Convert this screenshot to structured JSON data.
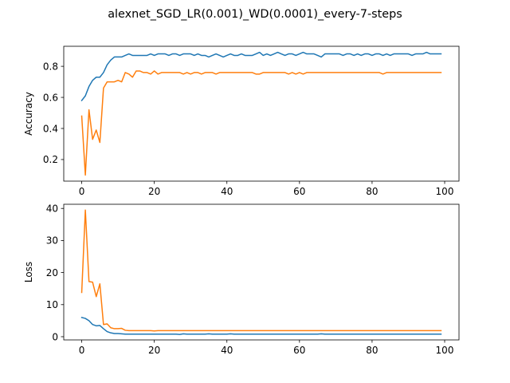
{
  "title": "alexnet_SGD_LR(0.001)_WD(0.0001)_every-7-steps",
  "chart_data": [
    {
      "type": "line",
      "ylabel": "Accuracy",
      "xlabel": "",
      "xlim": [
        -4.95,
        103.95
      ],
      "ylim": [
        0.061,
        0.929
      ],
      "xticks": [
        0,
        20,
        40,
        60,
        80,
        100
      ],
      "yticks": [
        0.2,
        0.4,
        0.6,
        0.8
      ],
      "ytick_labels": [
        "0.2",
        "0.4",
        "0.6",
        "0.8"
      ],
      "grid": false,
      "series": [
        {
          "color": "#1f77b4",
          "x": [
            0,
            1,
            2,
            3,
            4,
            5,
            6,
            7,
            8,
            9,
            10,
            11,
            12,
            13,
            14,
            15,
            16,
            17,
            18,
            19,
            20,
            21,
            22,
            23,
            24,
            25,
            26,
            27,
            28,
            29,
            30,
            31,
            32,
            33,
            34,
            35,
            36,
            37,
            38,
            39,
            40,
            41,
            42,
            43,
            44,
            45,
            46,
            47,
            48,
            49,
            50,
            51,
            52,
            53,
            54,
            55,
            56,
            57,
            58,
            59,
            60,
            61,
            62,
            63,
            64,
            65,
            66,
            67,
            68,
            69,
            70,
            71,
            72,
            73,
            74,
            75,
            76,
            77,
            78,
            79,
            80,
            81,
            82,
            83,
            84,
            85,
            86,
            87,
            88,
            89,
            90,
            91,
            92,
            93,
            94,
            95,
            96,
            97,
            98,
            99
          ],
          "values": [
            0.58,
            0.61,
            0.67,
            0.71,
            0.73,
            0.73,
            0.76,
            0.81,
            0.84,
            0.86,
            0.86,
            0.86,
            0.87,
            0.88,
            0.87,
            0.87,
            0.87,
            0.87,
            0.87,
            0.88,
            0.87,
            0.88,
            0.88,
            0.88,
            0.87,
            0.88,
            0.88,
            0.87,
            0.88,
            0.88,
            0.88,
            0.87,
            0.88,
            0.87,
            0.87,
            0.86,
            0.87,
            0.88,
            0.87,
            0.86,
            0.87,
            0.88,
            0.87,
            0.87,
            0.88,
            0.87,
            0.87,
            0.87,
            0.88,
            0.89,
            0.87,
            0.88,
            0.87,
            0.88,
            0.89,
            0.88,
            0.87,
            0.88,
            0.88,
            0.87,
            0.88,
            0.89,
            0.88,
            0.88,
            0.88,
            0.87,
            0.86,
            0.88,
            0.88,
            0.88,
            0.88,
            0.88,
            0.87,
            0.88,
            0.88,
            0.87,
            0.88,
            0.87,
            0.88,
            0.88,
            0.87,
            0.88,
            0.88,
            0.87,
            0.88,
            0.87,
            0.88,
            0.88,
            0.88,
            0.88,
            0.88,
            0.87,
            0.88,
            0.88,
            0.88,
            0.89,
            0.88,
            0.88,
            0.88,
            0.88
          ]
        },
        {
          "color": "#ff7f0e",
          "x": [
            0,
            1,
            2,
            3,
            4,
            5,
            6,
            7,
            8,
            9,
            10,
            11,
            12,
            13,
            14,
            15,
            16,
            17,
            18,
            19,
            20,
            21,
            22,
            23,
            24,
            25,
            26,
            27,
            28,
            29,
            30,
            31,
            32,
            33,
            34,
            35,
            36,
            37,
            38,
            39,
            40,
            41,
            42,
            43,
            44,
            45,
            46,
            47,
            48,
            49,
            50,
            51,
            52,
            53,
            54,
            55,
            56,
            57,
            58,
            59,
            60,
            61,
            62,
            63,
            64,
            65,
            66,
            67,
            68,
            69,
            70,
            71,
            72,
            73,
            74,
            75,
            76,
            77,
            78,
            79,
            80,
            81,
            82,
            83,
            84,
            85,
            86,
            87,
            88,
            89,
            90,
            91,
            92,
            93,
            94,
            95,
            96,
            97,
            98,
            99
          ],
          "values": [
            0.48,
            0.1,
            0.52,
            0.33,
            0.39,
            0.31,
            0.66,
            0.7,
            0.7,
            0.7,
            0.71,
            0.7,
            0.76,
            0.75,
            0.73,
            0.77,
            0.77,
            0.76,
            0.76,
            0.75,
            0.77,
            0.75,
            0.76,
            0.76,
            0.76,
            0.76,
            0.76,
            0.76,
            0.75,
            0.76,
            0.75,
            0.76,
            0.76,
            0.75,
            0.76,
            0.76,
            0.76,
            0.75,
            0.76,
            0.76,
            0.76,
            0.76,
            0.76,
            0.76,
            0.76,
            0.76,
            0.76,
            0.76,
            0.75,
            0.75,
            0.76,
            0.76,
            0.76,
            0.76,
            0.76,
            0.76,
            0.76,
            0.75,
            0.76,
            0.75,
            0.76,
            0.75,
            0.76,
            0.76,
            0.76,
            0.76,
            0.76,
            0.76,
            0.76,
            0.76,
            0.76,
            0.76,
            0.76,
            0.76,
            0.76,
            0.76,
            0.76,
            0.76,
            0.76,
            0.76,
            0.76,
            0.76,
            0.76,
            0.75,
            0.76,
            0.76,
            0.76,
            0.76,
            0.76,
            0.76,
            0.76,
            0.76,
            0.76,
            0.76,
            0.76,
            0.76,
            0.76,
            0.76,
            0.76,
            0.76
          ]
        }
      ]
    },
    {
      "type": "line",
      "ylabel": "Loss",
      "xlabel": "",
      "xlim": [
        -4.95,
        103.95
      ],
      "ylim": [
        -1.0,
        41.3
      ],
      "xticks": [
        0,
        20,
        40,
        60,
        80,
        100
      ],
      "yticks": [
        0,
        10,
        20,
        30,
        40
      ],
      "ytick_labels": [
        "0",
        "10",
        "20",
        "30",
        "40"
      ],
      "grid": false,
      "series": [
        {
          "color": "#1f77b4",
          "x": [
            0,
            1,
            2,
            3,
            4,
            5,
            6,
            7,
            8,
            9,
            10,
            11,
            12,
            13,
            14,
            15,
            16,
            17,
            18,
            19,
            20,
            21,
            22,
            23,
            24,
            25,
            26,
            27,
            28,
            29,
            30,
            31,
            32,
            33,
            34,
            35,
            36,
            37,
            38,
            39,
            40,
            41,
            42,
            43,
            44,
            45,
            46,
            47,
            48,
            49,
            50,
            51,
            52,
            53,
            54,
            55,
            56,
            57,
            58,
            59,
            60,
            61,
            62,
            63,
            64,
            65,
            66,
            67,
            68,
            69,
            70,
            71,
            72,
            73,
            74,
            75,
            76,
            77,
            78,
            79,
            80,
            81,
            82,
            83,
            84,
            85,
            86,
            87,
            88,
            89,
            90,
            91,
            92,
            93,
            94,
            95,
            96,
            97,
            98,
            99
          ],
          "values": [
            6.0,
            5.7,
            5.0,
            3.8,
            3.4,
            3.5,
            2.5,
            1.6,
            1.2,
            1.0,
            1.0,
            0.9,
            0.8,
            0.8,
            0.8,
            0.8,
            0.8,
            0.8,
            0.8,
            0.8,
            0.8,
            0.8,
            0.8,
            0.8,
            0.8,
            0.8,
            0.8,
            0.7,
            0.9,
            0.8,
            0.8,
            0.8,
            0.8,
            0.8,
            0.8,
            0.9,
            0.8,
            0.8,
            0.8,
            0.8,
            0.8,
            0.9,
            0.8,
            0.8,
            0.8,
            0.8,
            0.8,
            0.8,
            0.8,
            0.8,
            0.8,
            0.8,
            0.8,
            0.8,
            0.8,
            0.8,
            0.8,
            0.8,
            0.8,
            0.8,
            0.8,
            0.8,
            0.8,
            0.8,
            0.8,
            0.8,
            0.9,
            0.8,
            0.8,
            0.8,
            0.8,
            0.8,
            0.8,
            0.8,
            0.8,
            0.8,
            0.8,
            0.8,
            0.8,
            0.8,
            0.8,
            0.8,
            0.8,
            0.8,
            0.8,
            0.8,
            0.8,
            0.8,
            0.8,
            0.8,
            0.8,
            0.8,
            0.8,
            0.8,
            0.8,
            0.8,
            0.8,
            0.8,
            0.8,
            0.8
          ]
        },
        {
          "color": "#ff7f0e",
          "x": [
            0,
            1,
            2,
            3,
            4,
            5,
            6,
            7,
            8,
            9,
            10,
            11,
            12,
            13,
            14,
            15,
            16,
            17,
            18,
            19,
            20,
            21,
            22,
            23,
            24,
            25,
            26,
            27,
            28,
            29,
            30,
            31,
            32,
            33,
            34,
            35,
            36,
            37,
            38,
            39,
            40,
            41,
            42,
            43,
            44,
            45,
            46,
            47,
            48,
            49,
            50,
            51,
            52,
            53,
            54,
            55,
            56,
            57,
            58,
            59,
            60,
            61,
            62,
            63,
            64,
            65,
            66,
            67,
            68,
            69,
            70,
            71,
            72,
            73,
            74,
            75,
            76,
            77,
            78,
            79,
            80,
            81,
            82,
            83,
            84,
            85,
            86,
            87,
            88,
            89,
            90,
            91,
            92,
            93,
            94,
            95,
            96,
            97,
            98,
            99
          ],
          "values": [
            13.8,
            39.5,
            17.2,
            17.0,
            12.5,
            16.5,
            3.8,
            4.0,
            2.8,
            2.5,
            2.5,
            2.6,
            2.0,
            1.9,
            1.9,
            1.9,
            1.9,
            1.9,
            1.9,
            1.9,
            1.8,
            1.9,
            1.9,
            1.9,
            1.9,
            1.9,
            1.9,
            1.9,
            1.9,
            1.9,
            1.9,
            1.9,
            1.9,
            1.9,
            1.9,
            1.9,
            1.9,
            1.9,
            1.9,
            1.9,
            1.9,
            1.9,
            1.9,
            1.9,
            1.9,
            1.9,
            1.9,
            1.9,
            1.9,
            1.9,
            1.9,
            1.9,
            1.9,
            1.9,
            1.9,
            1.9,
            1.9,
            1.9,
            1.9,
            1.9,
            1.9,
            1.9,
            1.9,
            1.9,
            1.9,
            1.9,
            1.9,
            1.9,
            1.9,
            1.9,
            1.9,
            1.9,
            1.9,
            1.9,
            1.9,
            1.9,
            1.9,
            1.9,
            1.9,
            1.9,
            1.9,
            1.9,
            1.9,
            1.9,
            1.9,
            1.9,
            1.9,
            1.9,
            1.9,
            1.9,
            1.9,
            1.9,
            1.9,
            1.9,
            1.9,
            1.9,
            1.9,
            1.9,
            1.9,
            1.9
          ]
        }
      ]
    }
  ]
}
